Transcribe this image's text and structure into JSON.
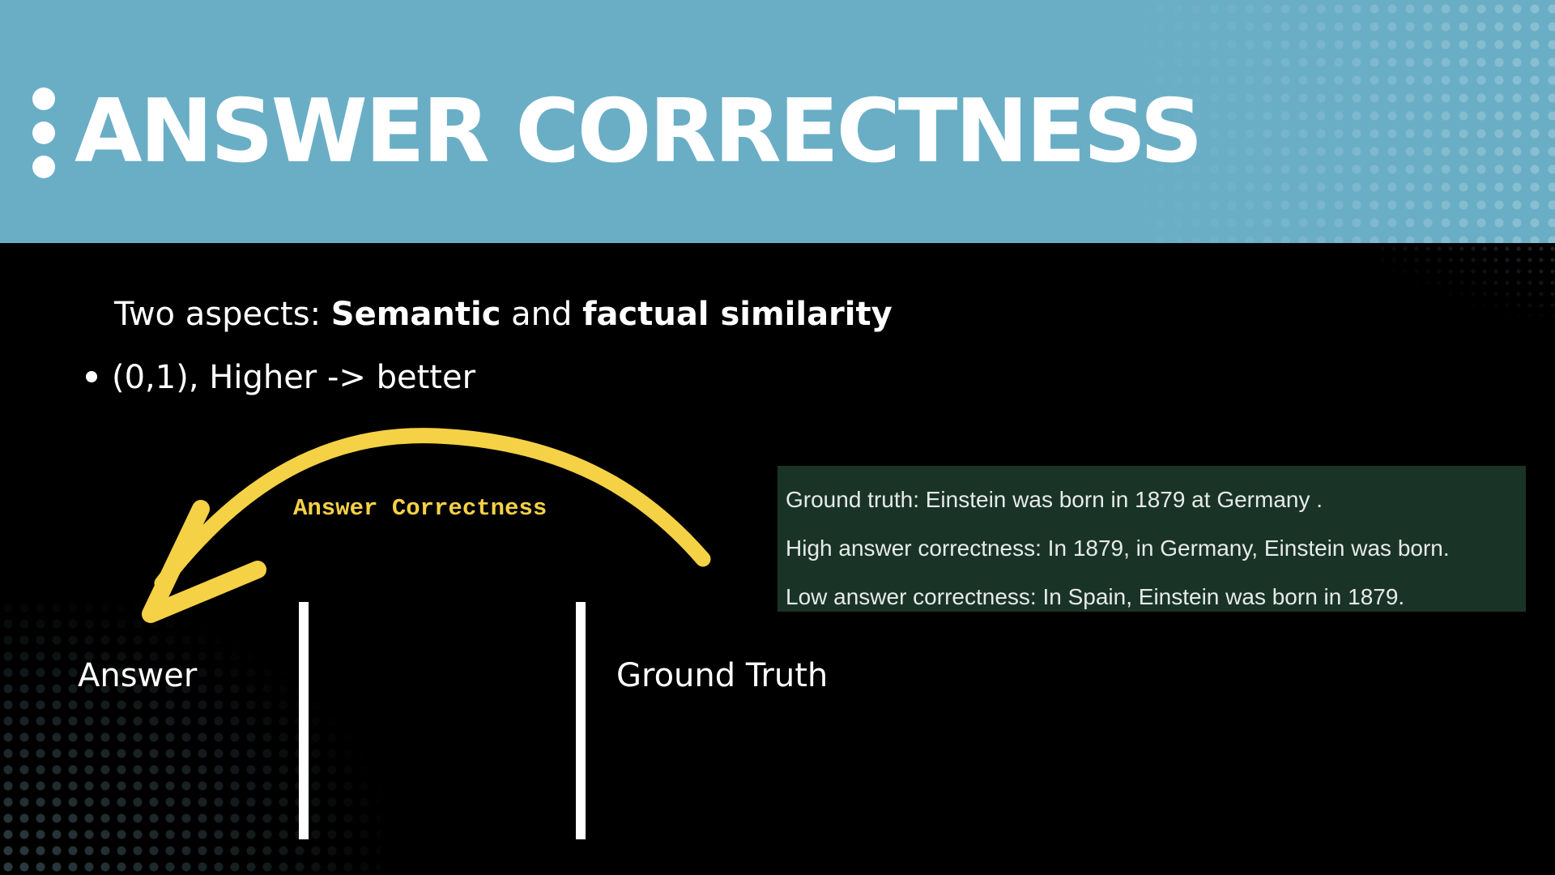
{
  "slide": {
    "title": "ANSWER CORRECTNESS",
    "intro": {
      "prefix": "Two aspects: ",
      "term1": "Semantic",
      "joiner": " and ",
      "term2": "factual similarity"
    },
    "bullet": "(0,1), Higher -> better",
    "arrow_label": "Answer Correctness",
    "answer_label": "Answer",
    "ground_truth_label": "Ground Truth",
    "examples": [
      "Ground truth: Einstein was born in 1879 at Germany .",
      "High answer correctness: In 1879, in Germany, Einstein was born.",
      "Low answer correctness: In Spain, Einstein was born in 1879."
    ]
  },
  "colors": {
    "header_band": "#6aaec6",
    "background": "#000000",
    "arrow": "#f5d146",
    "example_box": "#1a3327",
    "text": "#ffffff"
  },
  "icons": {
    "title_marker": "vertical-three-dots-icon",
    "arrow": "curved-arrow-left-icon",
    "bullet": "bullet-dot-icon"
  }
}
